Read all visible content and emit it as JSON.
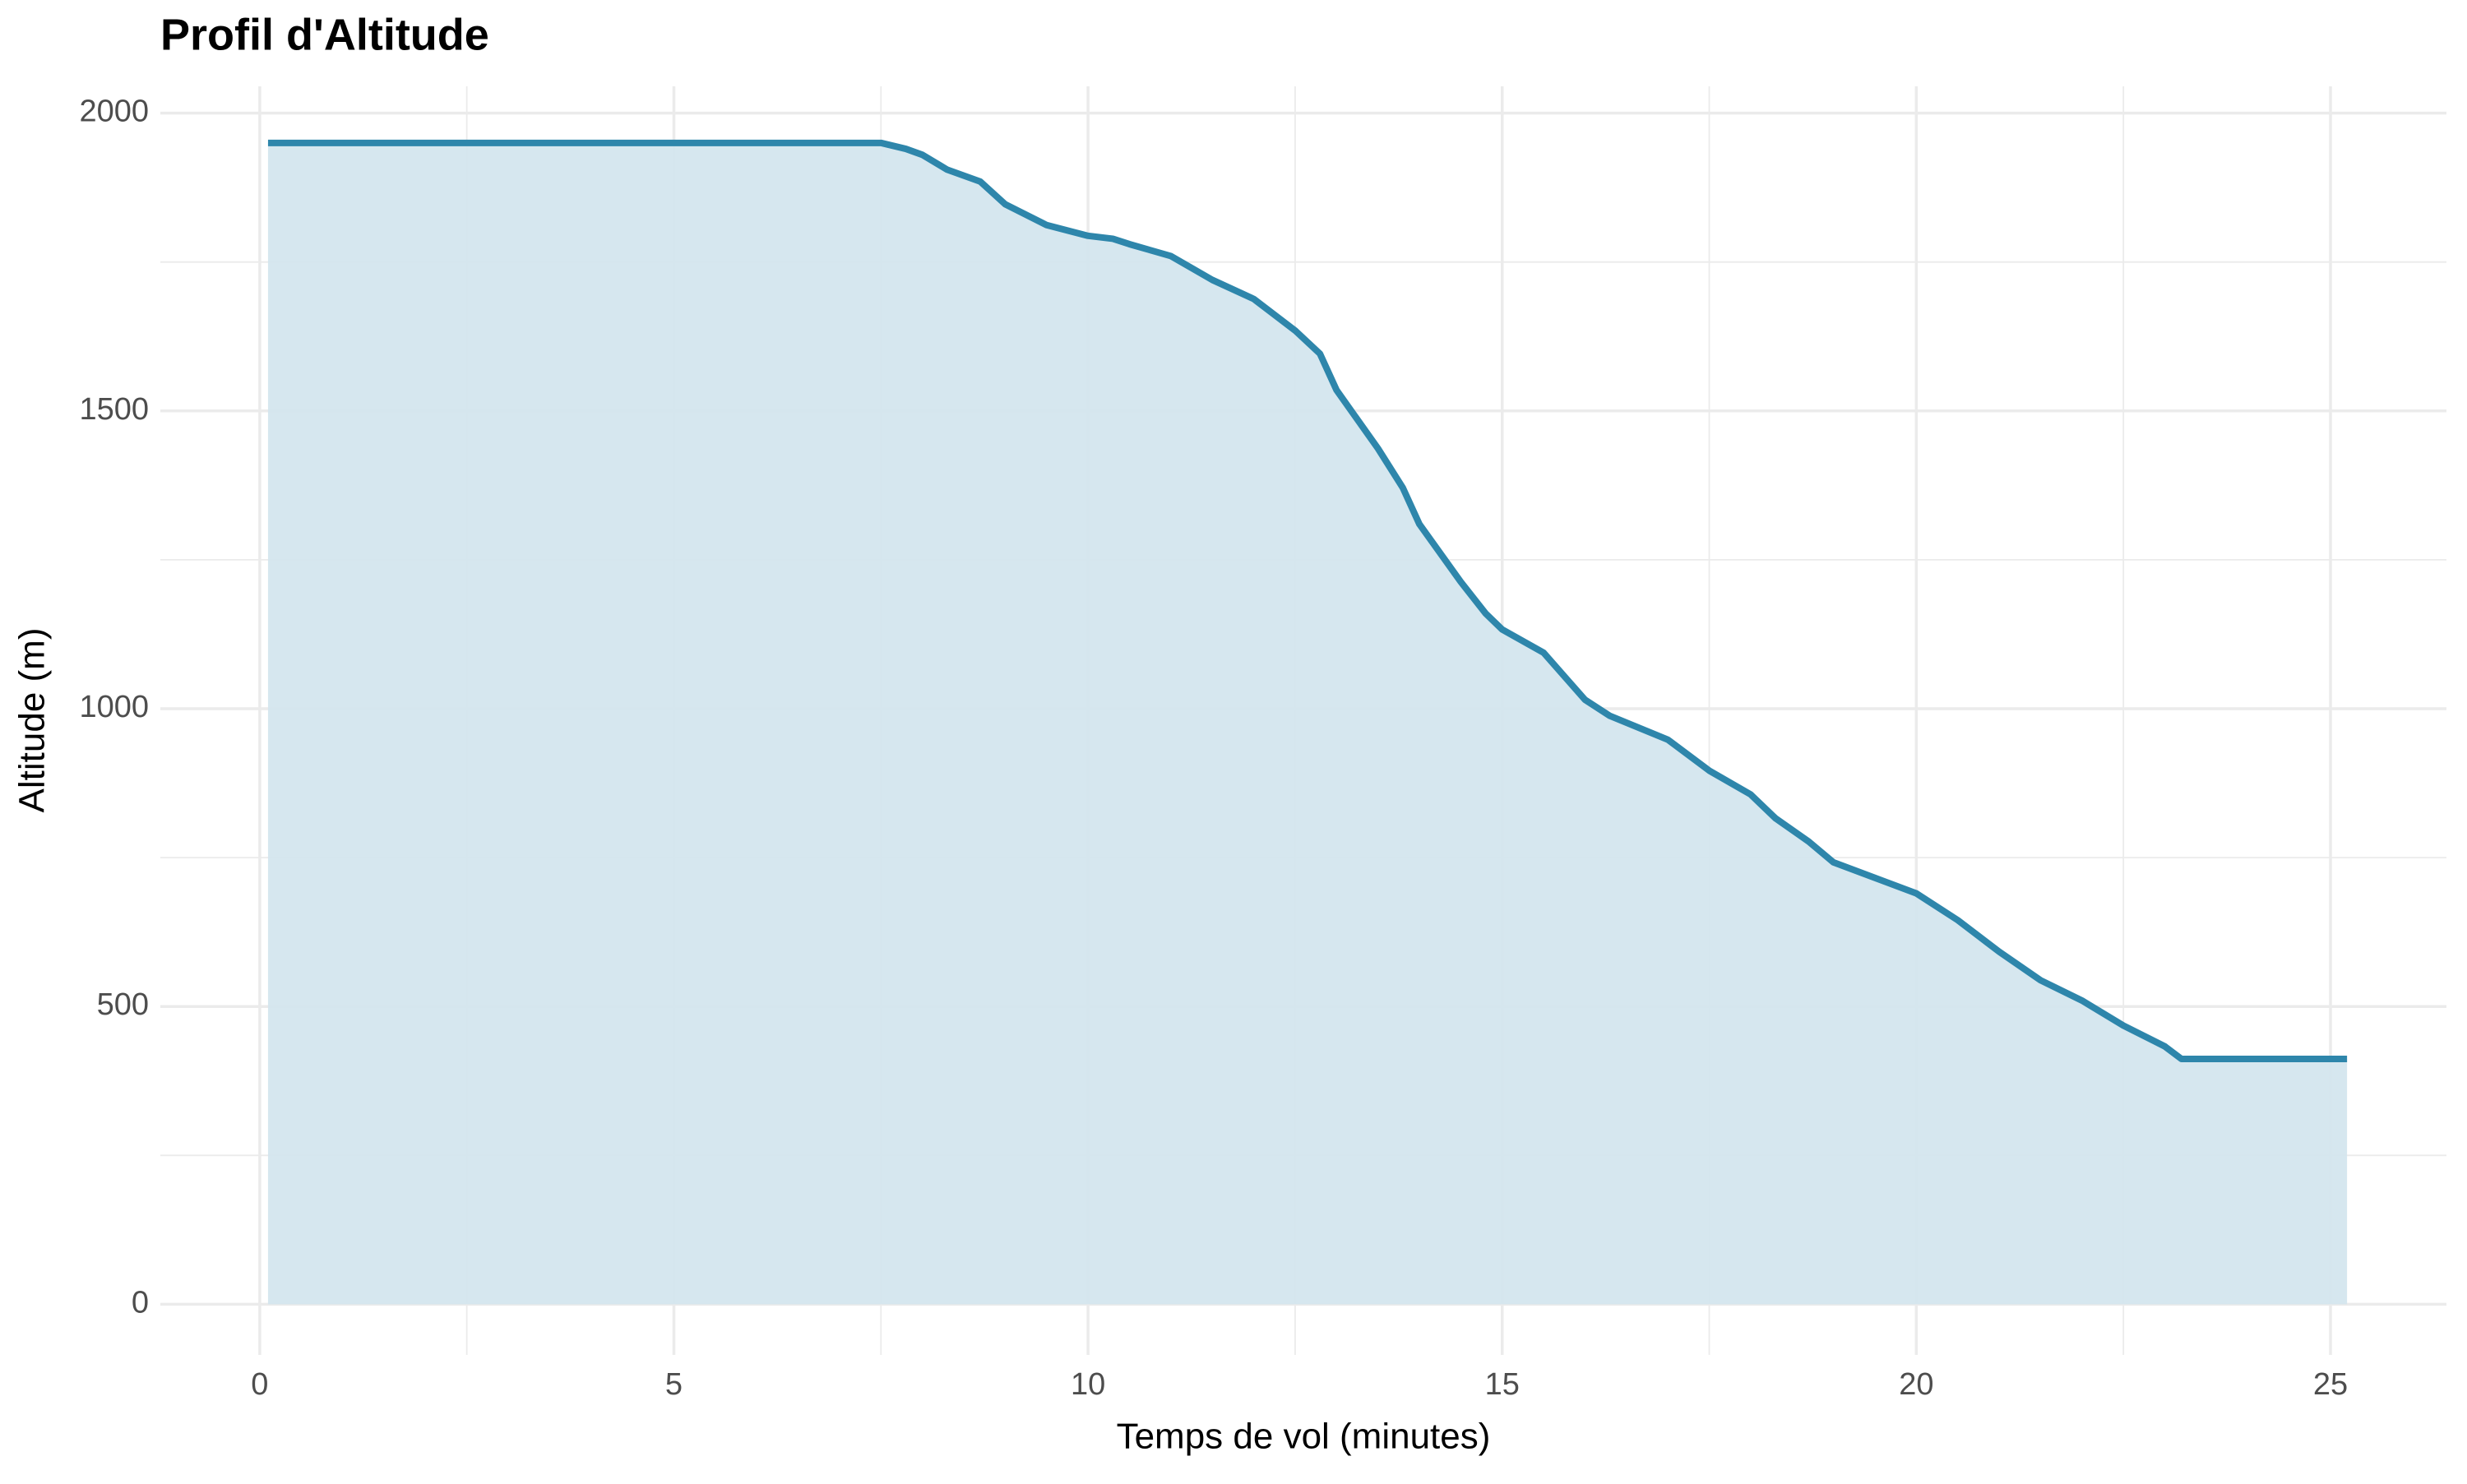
{
  "chart_data": {
    "type": "area",
    "title": "Profil d'Altitude",
    "x_label": "Temps de vol (minutes)",
    "y_label": "Altitude (m)",
    "x": [
      0.1,
      7.5,
      7.8,
      8.0,
      8.3,
      8.7,
      9.0,
      9.5,
      10.0,
      10.3,
      10.5,
      11.0,
      11.5,
      12.0,
      12.5,
      12.8,
      13.0,
      13.5,
      13.8,
      14.0,
      14.5,
      14.8,
      15.0,
      15.5,
      16.0,
      16.3,
      17.0,
      17.5,
      18.0,
      18.3,
      18.7,
      19.0,
      19.5,
      20.0,
      20.5,
      21.0,
      21.5,
      22.0,
      22.5,
      23.0,
      23.2,
      25.2
    ],
    "series": [
      {
        "color": "#2e86ab",
        "fill": "#d4e6ee",
        "values": [
          1950,
          1950,
          1940,
          1930,
          1905,
          1885,
          1847,
          1812,
          1794,
          1789,
          1780,
          1760,
          1720,
          1688,
          1635,
          1596,
          1535,
          1437,
          1371,
          1310,
          1213,
          1160,
          1133,
          1094,
          1015,
          988,
          948,
          896,
          856,
          816,
          777,
          742,
          716,
          690,
          645,
          592,
          544,
          510,
          468,
          433,
          412,
          412
        ]
      }
    ],
    "xlim": [
      -1.2,
      26.4
    ],
    "ylim": [
      -85,
      2045
    ],
    "xticks": [
      0,
      5,
      10,
      15,
      20,
      25
    ],
    "yticks": [
      0,
      500,
      1000,
      1500,
      2000
    ],
    "x_minor_grid": [
      2.5,
      7.5,
      12.5,
      17.5,
      22.5
    ],
    "y_minor_grid": [
      250,
      750,
      1250,
      1750
    ],
    "grid": true
  }
}
